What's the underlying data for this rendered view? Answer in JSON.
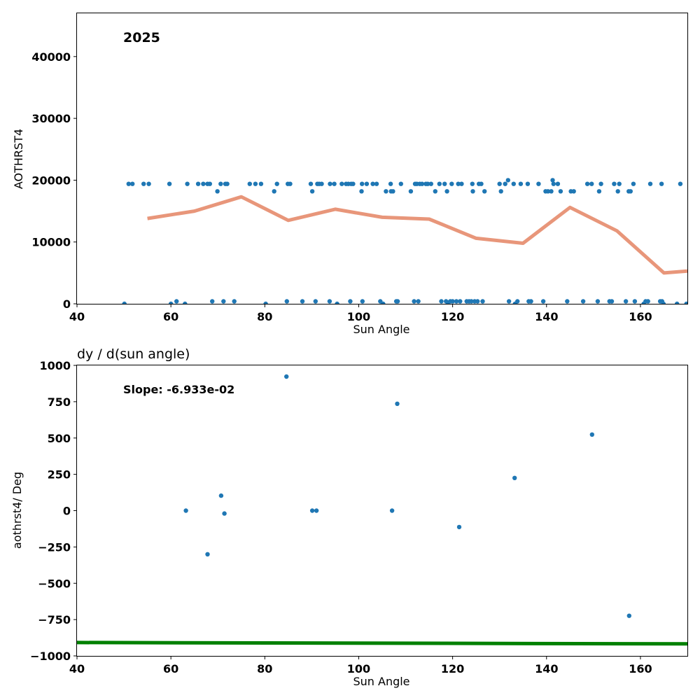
{
  "chart_data": [
    {
      "type": "scatter",
      "title": "",
      "annotation": "2025",
      "xlabel": "Sun Angle",
      "ylabel": "AOTHRST4",
      "xlim": [
        40,
        170
      ],
      "ylim": [
        0,
        47000
      ],
      "xticks": [
        40,
        60,
        80,
        100,
        120,
        140,
        160
      ],
      "yticks": [
        0,
        10000,
        20000,
        30000,
        40000
      ],
      "grid": false,
      "colors": {
        "scatter": "#1f77b4",
        "line": "#e8967a"
      },
      "series": [
        {
          "kind": "scatter",
          "points": [
            [
              50.1,
              0
            ],
            [
              51.0,
              19400
            ],
            [
              51.8,
              19400
            ],
            [
              54.2,
              19400
            ],
            [
              55.3,
              19400
            ],
            [
              59.7,
              19400
            ],
            [
              60.0,
              0
            ],
            [
              61.2,
              400
            ],
            [
              63.0,
              0
            ],
            [
              63.5,
              19400
            ],
            [
              65.8,
              19400
            ],
            [
              66.9,
              19400
            ],
            [
              67.8,
              19400
            ],
            [
              68.3,
              19400
            ],
            [
              68.8,
              400
            ],
            [
              69.9,
              18200
            ],
            [
              70.6,
              19400
            ],
            [
              71.2,
              400
            ],
            [
              71.6,
              19400
            ],
            [
              72.0,
              19400
            ],
            [
              73.5,
              400
            ],
            [
              76.8,
              19400
            ],
            [
              78.0,
              19400
            ],
            [
              79.2,
              19400
            ],
            [
              80.2,
              0
            ],
            [
              82.0,
              18200
            ],
            [
              82.6,
              19400
            ],
            [
              84.7,
              400
            ],
            [
              84.9,
              19400
            ],
            [
              85.4,
              19400
            ],
            [
              88.0,
              400
            ],
            [
              89.8,
              19400
            ],
            [
              90.1,
              18200
            ],
            [
              90.8,
              400
            ],
            [
              91.2,
              19400
            ],
            [
              91.6,
              19400
            ],
            [
              92.1,
              19400
            ],
            [
              93.8,
              400
            ],
            [
              93.9,
              19400
            ],
            [
              94.8,
              19400
            ],
            [
              95.4,
              0
            ],
            [
              96.4,
              19400
            ],
            [
              97.3,
              19400
            ],
            [
              97.8,
              19400
            ],
            [
              98.2,
              400
            ],
            [
              98.4,
              19400
            ],
            [
              98.8,
              19400
            ],
            [
              100.6,
              18200
            ],
            [
              100.7,
              19400
            ],
            [
              100.8,
              400
            ],
            [
              101.7,
              19400
            ],
            [
              103.0,
              19400
            ],
            [
              103.8,
              19400
            ],
            [
              104.6,
              400
            ],
            [
              105.2,
              0
            ],
            [
              105.8,
              18200
            ],
            [
              106.8,
              19400
            ],
            [
              106.9,
              18200
            ],
            [
              107.3,
              18200
            ],
            [
              108.0,
              400
            ],
            [
              108.3,
              400
            ],
            [
              109.0,
              19400
            ],
            [
              111.1,
              18200
            ],
            [
              111.8,
              400
            ],
            [
              112.0,
              19400
            ],
            [
              112.4,
              19400
            ],
            [
              112.7,
              400
            ],
            [
              113.0,
              19400
            ],
            [
              113.5,
              19400
            ],
            [
              114.3,
              19400
            ],
            [
              114.7,
              19400
            ],
            [
              115.4,
              19400
            ],
            [
              116.3,
              18200
            ],
            [
              117.2,
              19400
            ],
            [
              117.6,
              400
            ],
            [
              118.3,
              19400
            ],
            [
              118.6,
              400
            ],
            [
              118.8,
              18200
            ],
            [
              119.0,
              200
            ],
            [
              119.5,
              400
            ],
            [
              119.8,
              19400
            ],
            [
              120.0,
              400
            ],
            [
              120.8,
              400
            ],
            [
              121.2,
              19400
            ],
            [
              121.6,
              400
            ],
            [
              121.9,
              19400
            ],
            [
              123.0,
              400
            ],
            [
              123.5,
              400
            ],
            [
              124.0,
              400
            ],
            [
              124.2,
              19400
            ],
            [
              124.3,
              18200
            ],
            [
              124.7,
              400
            ],
            [
              125.3,
              400
            ],
            [
              125.6,
              19400
            ],
            [
              126.1,
              19400
            ],
            [
              126.4,
              400
            ],
            [
              126.8,
              18200
            ],
            [
              130.0,
              19400
            ],
            [
              130.3,
              18200
            ],
            [
              131.2,
              19400
            ],
            [
              131.8,
              20000
            ],
            [
              132.0,
              400
            ],
            [
              133.0,
              19400
            ],
            [
              133.3,
              0
            ],
            [
              133.8,
              400
            ],
            [
              134.5,
              19400
            ],
            [
              136.0,
              19400
            ],
            [
              136.2,
              400
            ],
            [
              136.7,
              400
            ],
            [
              138.3,
              19400
            ],
            [
              139.3,
              400
            ],
            [
              139.8,
              18200
            ],
            [
              140.3,
              18200
            ],
            [
              141.0,
              18200
            ],
            [
              141.3,
              20000
            ],
            [
              141.5,
              19400
            ],
            [
              142.4,
              19400
            ],
            [
              143.0,
              18200
            ],
            [
              144.4,
              400
            ],
            [
              145.2,
              18200
            ],
            [
              145.8,
              18200
            ],
            [
              147.8,
              400
            ],
            [
              148.7,
              19400
            ],
            [
              149.6,
              19400
            ],
            [
              150.9,
              400
            ],
            [
              151.2,
              18200
            ],
            [
              151.6,
              19400
            ],
            [
              153.4,
              400
            ],
            [
              153.9,
              400
            ],
            [
              154.4,
              19400
            ],
            [
              155.2,
              18200
            ],
            [
              155.5,
              19400
            ],
            [
              156.9,
              400
            ],
            [
              157.5,
              18200
            ],
            [
              157.9,
              18200
            ],
            [
              158.5,
              19400
            ],
            [
              158.8,
              400
            ],
            [
              160.7,
              0
            ],
            [
              161.1,
              400
            ],
            [
              161.6,
              400
            ],
            [
              162.1,
              19400
            ],
            [
              164.2,
              400
            ],
            [
              164.5,
              19400
            ],
            [
              164.6,
              400
            ],
            [
              164.9,
              0
            ],
            [
              167.8,
              0
            ],
            [
              168.5,
              19400
            ],
            [
              169.8,
              0
            ]
          ]
        },
        {
          "kind": "line",
          "points": [
            [
              55,
              13800
            ],
            [
              65,
              15000
            ],
            [
              75,
              17300
            ],
            [
              85,
              13500
            ],
            [
              95,
              15300
            ],
            [
              105,
              14000
            ],
            [
              115,
              13700
            ],
            [
              125,
              10600
            ],
            [
              135,
              9800
            ],
            [
              145,
              15600
            ],
            [
              155,
              11800
            ],
            [
              165,
              5000
            ],
            [
              170,
              5300
            ]
          ]
        }
      ]
    },
    {
      "type": "scatter",
      "title": "dy / d(sun angle)",
      "annotation": "Slope: -6.933e-02",
      "xlabel": "Sun Angle",
      "ylabel": "aothrst4/ Deg",
      "xlim": [
        40,
        170
      ],
      "ylim": [
        -1000,
        1000
      ],
      "xticks": [
        40,
        60,
        80,
        100,
        120,
        140,
        160
      ],
      "yticks": [
        -1000,
        -750,
        -500,
        -250,
        0,
        250,
        500,
        750,
        1000
      ],
      "ytick_labels": [
        "−1000",
        "−750",
        "−500",
        "−250",
        "0",
        "250",
        "500",
        "750",
        "1000"
      ],
      "grid": false,
      "colors": {
        "scatter": "#1f77b4",
        "line": "#008000"
      },
      "series": [
        {
          "kind": "scatter",
          "points": [
            [
              63.2,
              0
            ],
            [
              67.8,
              -300
            ],
            [
              70.7,
              103
            ],
            [
              71.4,
              -20
            ],
            [
              84.6,
              923
            ],
            [
              90.1,
              0
            ],
            [
              91.0,
              0
            ],
            [
              107.1,
              0
            ],
            [
              108.2,
              736
            ],
            [
              121.4,
              -113
            ],
            [
              133.2,
              225
            ],
            [
              149.7,
              524
            ],
            [
              157.6,
              -724
            ]
          ]
        },
        {
          "kind": "line",
          "points": [
            [
              40,
              -908
            ],
            [
              170,
              -917
            ]
          ]
        }
      ]
    }
  ]
}
